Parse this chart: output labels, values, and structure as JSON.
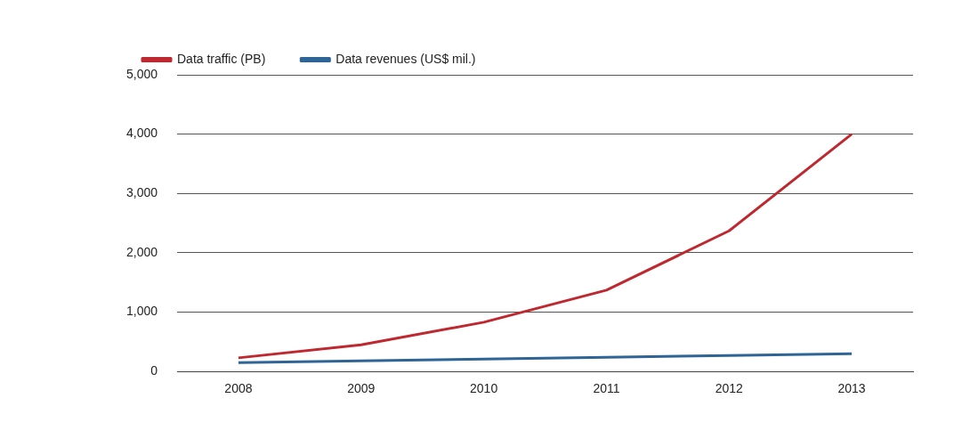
{
  "chart_data": {
    "type": "line",
    "categories": [
      "2008",
      "2009",
      "2010",
      "2011",
      "2012",
      "2013"
    ],
    "series": [
      {
        "name": "Data traffic (PB)",
        "color": "#c0282f",
        "values": [
          230,
          450,
          830,
          1370,
          2370,
          4000
        ]
      },
      {
        "name": "Data revenues (US$ mil.)",
        "color": "#2e6496",
        "values": [
          150,
          180,
          210,
          240,
          270,
          300
        ]
      }
    ],
    "ylim": [
      0,
      5000
    ],
    "yticks": [
      {
        "value": 0,
        "label": "0"
      },
      {
        "value": 1000,
        "label": "1,000"
      },
      {
        "value": 2000,
        "label": "2,000"
      },
      {
        "value": 3000,
        "label": "3,000"
      },
      {
        "value": 4000,
        "label": "4,000"
      },
      {
        "value": 5000,
        "label": "5,000"
      }
    ],
    "grid": "y",
    "legend": "top left",
    "marker": "none",
    "line_style": "solid"
  }
}
